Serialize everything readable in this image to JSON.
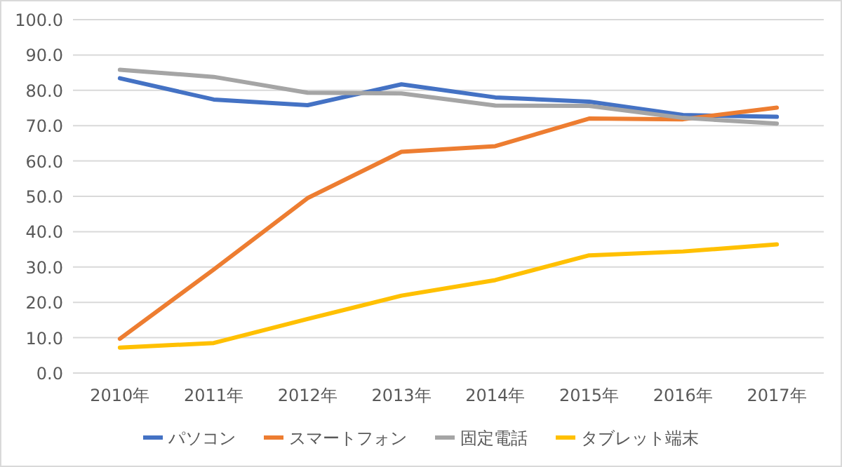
{
  "chart_data": {
    "type": "line",
    "categories": [
      "2010年",
      "2011年",
      "2012年",
      "2013年",
      "2014年",
      "2015年",
      "2016年",
      "2017年"
    ],
    "series": [
      {
        "name": "パソコン",
        "color": "#4472c4",
        "values": [
          83.4,
          77.4,
          75.8,
          81.7,
          78.0,
          76.8,
          73.0,
          72.5
        ]
      },
      {
        "name": "スマートフォン",
        "color": "#ed7d31",
        "values": [
          9.7,
          29.3,
          49.5,
          62.6,
          64.2,
          72.0,
          71.8,
          75.1
        ]
      },
      {
        "name": "固定電話",
        "color": "#a5a5a5",
        "values": [
          85.8,
          83.8,
          79.3,
          79.1,
          75.7,
          75.6,
          72.2,
          70.6
        ]
      },
      {
        "name": "タブレット端末",
        "color": "#ffc000",
        "values": [
          7.2,
          8.5,
          15.3,
          21.9,
          26.3,
          33.3,
          34.4,
          36.4
        ]
      }
    ],
    "ylim": [
      0,
      100
    ],
    "yticks": [
      {
        "value": 0,
        "label": "0.0"
      },
      {
        "value": 10,
        "label": "10.0"
      },
      {
        "value": 20,
        "label": "20.0"
      },
      {
        "value": 30,
        "label": "30.0"
      },
      {
        "value": 40,
        "label": "40.0"
      },
      {
        "value": 50,
        "label": "50.0"
      },
      {
        "value": 60,
        "label": "60.0"
      },
      {
        "value": 70,
        "label": "70.0"
      },
      {
        "value": 80,
        "label": "80.0"
      },
      {
        "value": 90,
        "label": "90.0"
      },
      {
        "value": 100,
        "label": "100.0"
      }
    ],
    "grid": "y",
    "legend": "bottom",
    "marker": "none",
    "line_style": "solid"
  }
}
